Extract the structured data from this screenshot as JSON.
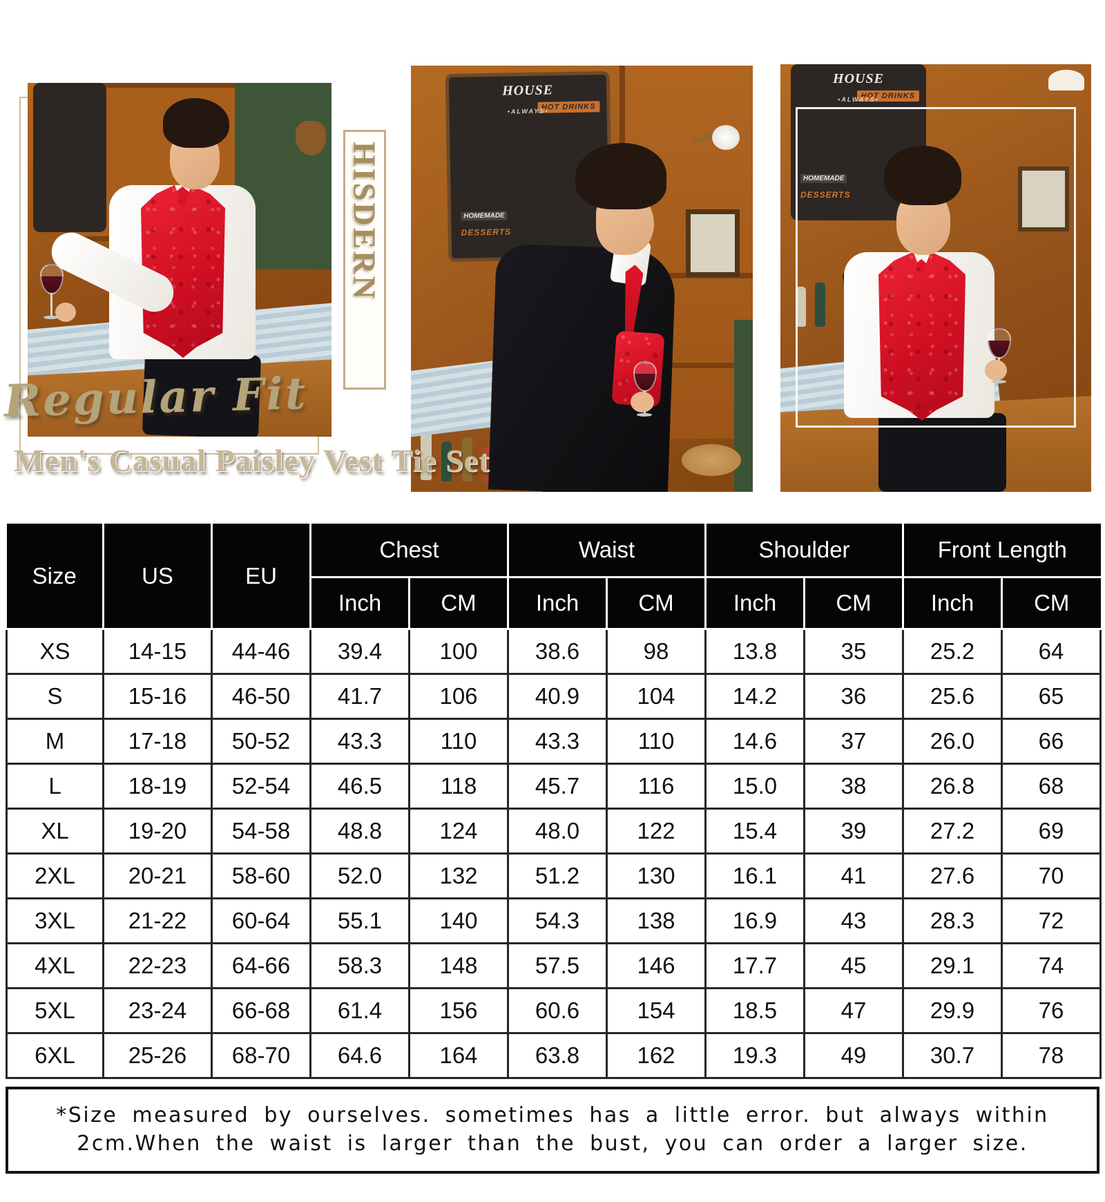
{
  "brand": {
    "vertical_text": "HISDERN"
  },
  "hero": {
    "fit_label": "Regular Fit",
    "product_title": "Men's Casual Paisley Vest Tie Set",
    "chalkboard": {
      "title": "HOUSE",
      "line1": "HOT DRINKS",
      "line2": "•ALWAYS•",
      "line3": "HOMEMADE",
      "line4": "DESSERTS"
    }
  },
  "size_chart": {
    "header": {
      "size": "Size",
      "us": "US",
      "eu": "EU",
      "groups": [
        {
          "label": "Chest",
          "sub": [
            "Inch",
            "CM"
          ]
        },
        {
          "label": "Waist",
          "sub": [
            "Inch",
            "CM"
          ]
        },
        {
          "label": "Shoulder",
          "sub": [
            "Inch",
            "CM"
          ]
        },
        {
          "label": "Front Length",
          "sub": [
            "Inch",
            "CM"
          ]
        }
      ]
    },
    "rows": [
      [
        "XS",
        "14-15",
        "44-46",
        "39.4",
        "100",
        "38.6",
        "98",
        "13.8",
        "35",
        "25.2",
        "64"
      ],
      [
        "S",
        "15-16",
        "46-50",
        "41.7",
        "106",
        "40.9",
        "104",
        "14.2",
        "36",
        "25.6",
        "65"
      ],
      [
        "M",
        "17-18",
        "50-52",
        "43.3",
        "110",
        "43.3",
        "110",
        "14.6",
        "37",
        "26.0",
        "66"
      ],
      [
        "L",
        "18-19",
        "52-54",
        "46.5",
        "118",
        "45.7",
        "116",
        "15.0",
        "38",
        "26.8",
        "68"
      ],
      [
        "XL",
        "19-20",
        "54-58",
        "48.8",
        "124",
        "48.0",
        "122",
        "15.4",
        "39",
        "27.2",
        "69"
      ],
      [
        "2XL",
        "20-21",
        "58-60",
        "52.0",
        "132",
        "51.2",
        "130",
        "16.1",
        "41",
        "27.6",
        "70"
      ],
      [
        "3XL",
        "21-22",
        "60-64",
        "55.1",
        "140",
        "54.3",
        "138",
        "16.9",
        "43",
        "28.3",
        "72"
      ],
      [
        "4XL",
        "22-23",
        "64-66",
        "58.3",
        "148",
        "57.5",
        "146",
        "17.7",
        "45",
        "29.1",
        "74"
      ],
      [
        "5XL",
        "23-24",
        "66-68",
        "61.4",
        "156",
        "60.6",
        "154",
        "18.5",
        "47",
        "29.9",
        "76"
      ],
      [
        "6XL",
        "25-26",
        "68-70",
        "64.6",
        "164",
        "63.8",
        "162",
        "19.3",
        "49",
        "30.7",
        "78"
      ]
    ]
  },
  "footnote": {
    "line1": "*Size measured by ourselves. sometimes has a little error. but always within",
    "line2": "2cm.When the waist is larger than the bust, you can order a larger size."
  },
  "colors": {
    "accent_red": "#e2182b",
    "brand_gold": "#a68e5e",
    "title_beige": "#c6b698",
    "table_header_bg": "#050505",
    "counter_blue": "#c7d7df",
    "wood": "#a55d1c"
  }
}
